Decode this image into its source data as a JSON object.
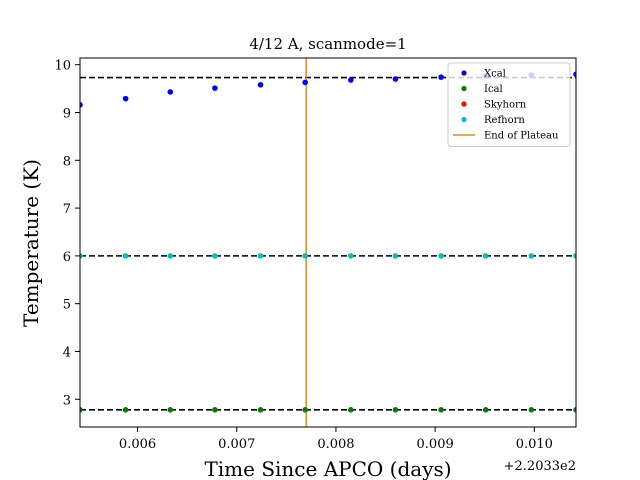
{
  "chart_data": {
    "type": "scatter",
    "title": "4/12 A, scanmode=1",
    "xlabel": "Time Since APCO (days)",
    "ylabel": "Temperature (K)",
    "x_offset_label": "+2.2033e2",
    "xlim": [
      0.00542,
      0.01042
    ],
    "ylim": [
      2.42,
      10.14
    ],
    "xticks": [
      0.006,
      0.007,
      0.008,
      0.009,
      0.01
    ],
    "xtick_labels": [
      "0.006",
      "0.007",
      "0.008",
      "0.009",
      "0.010"
    ],
    "yticks": [
      3,
      4,
      5,
      6,
      7,
      8,
      9,
      10
    ],
    "ytick_labels": [
      "3",
      "4",
      "5",
      "6",
      "7",
      "8",
      "9",
      "10"
    ],
    "grid": false,
    "legend_position": "top-right",
    "x": [
      0.00542,
      0.00588,
      0.00633,
      0.00678,
      0.00724,
      0.00769,
      0.00815,
      0.0086,
      0.00906,
      0.00951,
      0.00997,
      0.01042
    ],
    "series": [
      {
        "name": "Xcal",
        "color": "#0000ff",
        "marker": "point",
        "values": [
          9.16,
          9.29,
          9.43,
          9.51,
          9.58,
          9.63,
          9.68,
          9.7,
          9.74,
          9.76,
          9.78,
          9.8
        ]
      },
      {
        "name": "Ical",
        "color": "#008000",
        "marker": "point",
        "values": [
          2.78,
          2.78,
          2.78,
          2.78,
          2.78,
          2.78,
          2.78,
          2.78,
          2.78,
          2.78,
          2.78,
          2.78
        ]
      },
      {
        "name": "Skyhorn",
        "color": "#ff0000",
        "marker": "point",
        "values": []
      },
      {
        "name": "Refhorn",
        "color": "#00bfbf",
        "marker": "point",
        "values": [
          6.0,
          6.0,
          6.0,
          6.0,
          6.0,
          6.0,
          6.0,
          6.0,
          6.0,
          6.0,
          6.0,
          6.0
        ]
      }
    ],
    "reference_lines": [
      {
        "orientation": "horizontal",
        "y": 9.73,
        "color": "#000000",
        "style": "dashed"
      },
      {
        "orientation": "horizontal",
        "y": 6.0,
        "color": "#000000",
        "style": "dashed"
      },
      {
        "orientation": "horizontal",
        "y": 2.78,
        "color": "#000000",
        "style": "dashed"
      },
      {
        "orientation": "vertical",
        "x": 0.0077,
        "color": "#e08a1e",
        "style": "solid",
        "name": "End of Plateau"
      }
    ],
    "legend": [
      {
        "label": "Xcal",
        "color": "#0000ff",
        "kind": "point"
      },
      {
        "label": "Ical",
        "color": "#008000",
        "kind": "point"
      },
      {
        "label": "Skyhorn",
        "color": "#ff0000",
        "kind": "point"
      },
      {
        "label": "Refhorn",
        "color": "#00bfbf",
        "kind": "point"
      },
      {
        "label": "End of Plateau",
        "color": "#e08a1e",
        "kind": "line"
      }
    ]
  }
}
